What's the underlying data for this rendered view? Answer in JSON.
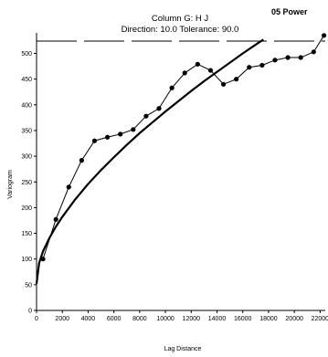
{
  "chart_data": {
    "type": "line",
    "title": "Column G:  H J",
    "subtitle": "Direction: 10.0    Tolerance: 90.0",
    "corner_title": "05 Power",
    "xlabel": "Lag Distance",
    "ylabel": "Variogram",
    "xlim": [
      0,
      22400
    ],
    "ylim": [
      0,
      540
    ],
    "xticks": [
      0,
      2000,
      4000,
      6000,
      8000,
      10000,
      12000,
      14000,
      16000,
      18000,
      20000,
      22000
    ],
    "yticks": [
      0,
      50,
      100,
      150,
      200,
      250,
      300,
      350,
      400,
      450,
      500
    ],
    "grid": false,
    "legend": "none",
    "reference_line": {
      "style": "dashed",
      "y": 524
    },
    "series": [
      {
        "style": "markers-line",
        "x": [
          500,
          1500,
          2500,
          3500,
          4500,
          5500,
          6500,
          7500,
          8500,
          9500,
          10500,
          11500,
          12500,
          13500,
          14500,
          15500,
          16500,
          17500,
          18500,
          19500,
          20500,
          21500,
          22300
        ],
        "y": [
          100,
          177,
          240,
          292,
          330,
          337,
          343,
          352,
          378,
          393,
          433,
          462,
          479,
          467,
          440,
          450,
          473,
          477,
          487,
          492,
          492,
          503,
          535
        ]
      },
      {
        "style": "smooth-line",
        "x": [
          0,
          200,
          500,
          1000,
          1500,
          2000,
          3000,
          4000,
          5000,
          6000,
          7000,
          8000,
          9000,
          10000,
          11000,
          12000,
          13000,
          14000,
          15000,
          16000,
          17000,
          17600
        ],
        "y": [
          52,
          92,
          115,
          141,
          163,
          182,
          216,
          246,
          273,
          298,
          322,
          345,
          366,
          387,
          407,
          427,
          446,
          464,
          482,
          500,
          517,
          527
        ]
      }
    ]
  }
}
